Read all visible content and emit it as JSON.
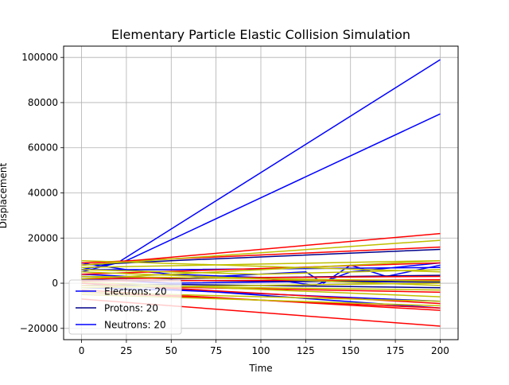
{
  "chart_data": {
    "type": "line",
    "title": "Elementary Particle Elastic Collision Simulation",
    "xlabel": "Time",
    "ylabel": "Displacement",
    "xlim": [
      -10,
      210
    ],
    "ylim": [
      -25000,
      105000
    ],
    "xticks": [
      0,
      25,
      50,
      75,
      100,
      125,
      150,
      175,
      200
    ],
    "yticks": [
      -20000,
      0,
      20000,
      40000,
      60000,
      80000,
      100000
    ],
    "xtick_labels": [
      "0",
      "25",
      "50",
      "75",
      "100",
      "125",
      "150",
      "175",
      "200"
    ],
    "ytick_labels": [
      "−20000",
      "0",
      "20000",
      "40000",
      "60000",
      "80000",
      "100000"
    ],
    "grid": true,
    "legend": {
      "placement": "lower-left",
      "entries": [
        {
          "label": "Electrons: 20",
          "color": "#0000ff"
        },
        {
          "label": "Protons: 20",
          "color": "#00008b"
        },
        {
          "label": "Neutrons: 20",
          "color": "#0000ff"
        }
      ]
    },
    "series": [
      {
        "color": "#0000ff",
        "points": [
          [
            0,
            5000
          ],
          [
            20,
            9000
          ],
          [
            200,
            99000
          ]
        ]
      },
      {
        "color": "#0000ff",
        "points": [
          [
            0,
            6000
          ],
          [
            25,
            10000
          ],
          [
            200,
            75000
          ]
        ]
      },
      {
        "color": "#0000ff",
        "points": [
          [
            0,
            9000
          ],
          [
            25,
            6000
          ],
          [
            50,
            4000
          ],
          [
            100,
            2500
          ],
          [
            130,
            -1000
          ],
          [
            150,
            5000
          ],
          [
            200,
            9000
          ]
        ]
      },
      {
        "color": "#0000ff",
        "points": [
          [
            0,
            6000
          ],
          [
            50,
            6000
          ],
          [
            200,
            7000
          ]
        ]
      },
      {
        "color": "#0000ff",
        "points": [
          [
            0,
            4000
          ],
          [
            50,
            2000
          ],
          [
            125,
            5000
          ],
          [
            135,
            0
          ],
          [
            150,
            8000
          ],
          [
            170,
            3000
          ],
          [
            200,
            8000
          ]
        ]
      },
      {
        "color": "#0000ff",
        "points": [
          [
            0,
            2000
          ],
          [
            50,
            0
          ],
          [
            200,
            1500
          ]
        ]
      },
      {
        "color": "#0000ff",
        "points": [
          [
            0,
            -2000
          ],
          [
            50,
            -3000
          ],
          [
            200,
            -8000
          ]
        ]
      },
      {
        "color": "#0000ff",
        "points": [
          [
            0,
            0
          ],
          [
            50,
            -2500
          ],
          [
            200,
            -11000
          ]
        ]
      },
      {
        "color": "#00008b",
        "points": [
          [
            0,
            8000
          ],
          [
            50,
            10000
          ],
          [
            200,
            15000
          ]
        ]
      },
      {
        "color": "#00008b",
        "points": [
          [
            0,
            3000
          ],
          [
            50,
            2000
          ],
          [
            200,
            3500
          ]
        ]
      },
      {
        "color": "#00008b",
        "points": [
          [
            0,
            -1000
          ],
          [
            50,
            -500
          ],
          [
            200,
            -2000
          ]
        ]
      },
      {
        "color": "#00008b",
        "points": [
          [
            0,
            1500
          ],
          [
            100,
            1000
          ],
          [
            200,
            500
          ]
        ]
      },
      {
        "color": "#ff0000",
        "points": [
          [
            0,
            8000
          ],
          [
            200,
            22000
          ]
        ]
      },
      {
        "color": "#ff0000",
        "points": [
          [
            0,
            9000
          ],
          [
            200,
            16000
          ]
        ]
      },
      {
        "color": "#ff0000",
        "points": [
          [
            0,
            -7000
          ],
          [
            200,
            -19000
          ]
        ]
      },
      {
        "color": "#ff0000",
        "points": [
          [
            0,
            -3000
          ],
          [
            200,
            -12000
          ]
        ]
      },
      {
        "color": "#ff0000",
        "points": [
          [
            0,
            -1000
          ],
          [
            200,
            -4000
          ]
        ]
      },
      {
        "color": "#ff0000",
        "points": [
          [
            0,
            2000
          ],
          [
            200,
            3000
          ]
        ]
      },
      {
        "color": "#ff0000",
        "points": [
          [
            0,
            4000
          ],
          [
            200,
            9000
          ]
        ]
      },
      {
        "color": "#ff0000",
        "points": [
          [
            0,
            0
          ],
          [
            200,
            -9000
          ]
        ]
      },
      {
        "color": "#ff0000",
        "points": [
          [
            0,
            -4000
          ],
          [
            200,
            -11000
          ]
        ]
      },
      {
        "color": "#ff0000",
        "points": [
          [
            0,
            1000
          ],
          [
            200,
            1500
          ]
        ]
      },
      {
        "color": "#bfbf00",
        "points": [
          [
            0,
            8000
          ],
          [
            200,
            19000
          ]
        ]
      },
      {
        "color": "#bfbf00",
        "points": [
          [
            0,
            7000
          ],
          [
            200,
            10000
          ]
        ]
      },
      {
        "color": "#bfbf00",
        "points": [
          [
            0,
            10000
          ],
          [
            200,
            5000
          ]
        ]
      },
      {
        "color": "#bfbf00",
        "points": [
          [
            0,
            2000
          ],
          [
            200,
            10000
          ]
        ]
      },
      {
        "color": "#bfbf00",
        "points": [
          [
            0,
            -4000
          ],
          [
            200,
            -8000
          ]
        ]
      },
      {
        "color": "#bfbf00",
        "points": [
          [
            0,
            -5000
          ],
          [
            200,
            -10000
          ]
        ]
      },
      {
        "color": "#bfbf00",
        "points": [
          [
            0,
            5000
          ],
          [
            200,
            -1000
          ]
        ]
      },
      {
        "color": "#bfbf00",
        "points": [
          [
            0,
            -2000
          ],
          [
            200,
            0
          ]
        ]
      },
      {
        "color": "#bfbf00",
        "points": [
          [
            0,
            3000
          ],
          [
            200,
            1000
          ]
        ]
      },
      {
        "color": "#bfbf00",
        "points": [
          [
            0,
            -1000
          ],
          [
            200,
            -3000
          ]
        ]
      },
      {
        "color": "#bfbf00",
        "points": [
          [
            0,
            500
          ],
          [
            200,
            -6000
          ]
        ]
      },
      {
        "color": "#bfbf00",
        "points": [
          [
            0,
            6000
          ],
          [
            100,
            4000
          ],
          [
            200,
            6000
          ]
        ]
      }
    ]
  }
}
